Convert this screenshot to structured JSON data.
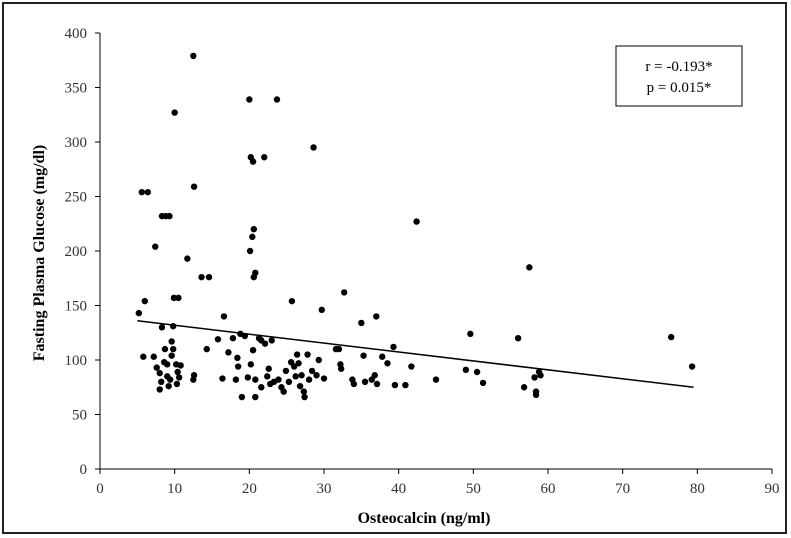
{
  "chart_data": {
    "type": "scatter",
    "xlabel": "Osteocalcin (ng/ml)",
    "ylabel": "Fasting Plasma Glucose (mg/dl)",
    "xlim": [
      0,
      90
    ],
    "ylim": [
      0,
      400
    ],
    "x_ticks": [
      "0",
      "10",
      "20",
      "30",
      "40",
      "50",
      "60",
      "70",
      "80",
      "90"
    ],
    "y_ticks": [
      "0",
      "50",
      "100",
      "150",
      "200",
      "250",
      "300",
      "350",
      "400"
    ],
    "grid": false,
    "annotation": {
      "line1": "r = -0.193*",
      "line2": "p = 0.015*"
    },
    "trendline": {
      "x": [
        5,
        79.5
      ],
      "y": [
        136,
        75
      ]
    },
    "points": [
      [
        5.2,
        143
      ],
      [
        5.6,
        254
      ],
      [
        6.4,
        254
      ],
      [
        6.0,
        154
      ],
      [
        5.8,
        103
      ],
      [
        7.4,
        204
      ],
      [
        7.2,
        103
      ],
      [
        7.6,
        93
      ],
      [
        8.0,
        88
      ],
      [
        8.2,
        80
      ],
      [
        8.0,
        73
      ],
      [
        8.3,
        130
      ],
      [
        8.3,
        232
      ],
      [
        8.8,
        232
      ],
      [
        9.3,
        232
      ],
      [
        8.6,
        98
      ],
      [
        8.7,
        110
      ],
      [
        9.0,
        96
      ],
      [
        9.0,
        85
      ],
      [
        9.2,
        76
      ],
      [
        9.4,
        82
      ],
      [
        9.6,
        117
      ],
      [
        9.6,
        104
      ],
      [
        9.8,
        131
      ],
      [
        9.9,
        157
      ],
      [
        10.0,
        327
      ],
      [
        10.2,
        96
      ],
      [
        10.4,
        89
      ],
      [
        10.6,
        84
      ],
      [
        10.3,
        78
      ],
      [
        10.8,
        95
      ],
      [
        10.5,
        157
      ],
      [
        9.8,
        110
      ],
      [
        11.7,
        193
      ],
      [
        12.5,
        379
      ],
      [
        12.6,
        259
      ],
      [
        12.6,
        86
      ],
      [
        12.5,
        82
      ],
      [
        13.6,
        176
      ],
      [
        14.3,
        110
      ],
      [
        14.6,
        176
      ],
      [
        15.8,
        119
      ],
      [
        16.4,
        83
      ],
      [
        16.6,
        140
      ],
      [
        17.2,
        107
      ],
      [
        17.8,
        120
      ],
      [
        18.2,
        82
      ],
      [
        18.4,
        102
      ],
      [
        18.5,
        94
      ],
      [
        18.8,
        124
      ],
      [
        19.0,
        66
      ],
      [
        19.4,
        122
      ],
      [
        19.8,
        84
      ],
      [
        20.0,
        339
      ],
      [
        20.2,
        286
      ],
      [
        20.1,
        200
      ],
      [
        20.5,
        282
      ],
      [
        20.6,
        220
      ],
      [
        20.4,
        213
      ],
      [
        20.6,
        176
      ],
      [
        20.8,
        180
      ],
      [
        20.5,
        109
      ],
      [
        20.2,
        96
      ],
      [
        20.8,
        82
      ],
      [
        20.8,
        66
      ],
      [
        21.3,
        120
      ],
      [
        21.6,
        118
      ],
      [
        21.6,
        75
      ],
      [
        22.0,
        286
      ],
      [
        22.1,
        115
      ],
      [
        22.4,
        85
      ],
      [
        22.6,
        92
      ],
      [
        22.8,
        78
      ],
      [
        23.0,
        118
      ],
      [
        23.3,
        80
      ],
      [
        23.7,
        339
      ],
      [
        23.9,
        82
      ],
      [
        24.3,
        75
      ],
      [
        24.6,
        71
      ],
      [
        24.9,
        90
      ],
      [
        25.3,
        80
      ],
      [
        25.6,
        98
      ],
      [
        25.7,
        154
      ],
      [
        26.0,
        94
      ],
      [
        26.2,
        85
      ],
      [
        26.4,
        105
      ],
      [
        26.6,
        97
      ],
      [
        26.8,
        76
      ],
      [
        27.0,
        86
      ],
      [
        27.3,
        71
      ],
      [
        27.4,
        66
      ],
      [
        27.8,
        105
      ],
      [
        28.0,
        82
      ],
      [
        28.4,
        90
      ],
      [
        28.6,
        295
      ],
      [
        29.0,
        86
      ],
      [
        29.3,
        100
      ],
      [
        29.7,
        146
      ],
      [
        30.0,
        83
      ],
      [
        31.6,
        110
      ],
      [
        32.0,
        110
      ],
      [
        32.2,
        96
      ],
      [
        32.3,
        92
      ],
      [
        32.7,
        162
      ],
      [
        33.8,
        82
      ],
      [
        34.0,
        78
      ],
      [
        35.0,
        134
      ],
      [
        35.3,
        104
      ],
      [
        35.5,
        80
      ],
      [
        36.4,
        82
      ],
      [
        36.8,
        86
      ],
      [
        37.0,
        140
      ],
      [
        37.1,
        78
      ],
      [
        37.8,
        103
      ],
      [
        38.5,
        97
      ],
      [
        39.3,
        112
      ],
      [
        39.5,
        77
      ],
      [
        40.9,
        77
      ],
      [
        41.7,
        94
      ],
      [
        42.4,
        227
      ],
      [
        45.0,
        82
      ],
      [
        49.0,
        91
      ],
      [
        49.6,
        124
      ],
      [
        50.5,
        89
      ],
      [
        51.3,
        79
      ],
      [
        56.0,
        120
      ],
      [
        56.8,
        75
      ],
      [
        57.5,
        185
      ],
      [
        58.2,
        84
      ],
      [
        58.4,
        71
      ],
      [
        58.4,
        68
      ],
      [
        58.8,
        89
      ],
      [
        59.0,
        86
      ],
      [
        76.5,
        121
      ],
      [
        79.3,
        94
      ]
    ]
  }
}
